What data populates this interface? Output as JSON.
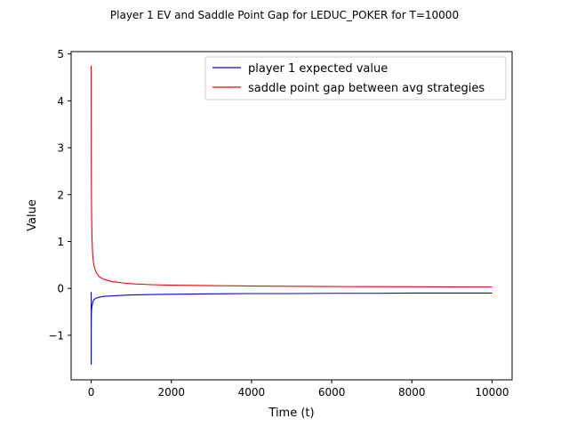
{
  "chart_data": {
    "type": "line",
    "title": "Player 1 EV and Saddle Point Gap for LEDUC_POKER for T=10000",
    "xlabel": "Time (t)",
    "ylabel": "Value",
    "xlim": [
      -500,
      10500
    ],
    "ylim": [
      -1.95,
      5.05
    ],
    "x_ticks": [
      0,
      2000,
      4000,
      6000,
      8000,
      10000
    ],
    "x_tick_labels": [
      "0",
      "2000",
      "4000",
      "6000",
      "8000",
      "10000"
    ],
    "y_ticks": [
      -1,
      0,
      1,
      2,
      3,
      4,
      5
    ],
    "y_tick_labels": [
      "−1",
      "0",
      "1",
      "2",
      "3",
      "4",
      "5"
    ],
    "grid": false,
    "legend_position": "upper-right",
    "series": [
      {
        "name": "player 1 expected value",
        "color": "#0000ff",
        "points": [
          [
            0,
            -0.08
          ],
          [
            1,
            -1.62
          ],
          [
            2,
            -0.8
          ],
          [
            5,
            -0.55
          ],
          [
            10,
            -0.45
          ],
          [
            20,
            -0.38
          ],
          [
            40,
            -0.3
          ],
          [
            60,
            -0.25
          ],
          [
            100,
            -0.22
          ],
          [
            150,
            -0.2
          ],
          [
            200,
            -0.19
          ],
          [
            300,
            -0.17
          ],
          [
            500,
            -0.16
          ],
          [
            750,
            -0.15
          ],
          [
            1000,
            -0.14
          ],
          [
            1500,
            -0.13
          ],
          [
            2000,
            -0.125
          ],
          [
            2500,
            -0.12
          ],
          [
            3000,
            -0.115
          ],
          [
            4000,
            -0.11
          ],
          [
            5000,
            -0.11
          ],
          [
            6000,
            -0.105
          ],
          [
            7000,
            -0.105
          ],
          [
            8000,
            -0.1
          ],
          [
            9000,
            -0.1
          ],
          [
            10000,
            -0.1
          ]
        ]
      },
      {
        "name": "saddle point gap between avg strategies",
        "color": "#ff0000",
        "points": [
          [
            0,
            4.75
          ],
          [
            2,
            3.2
          ],
          [
            5,
            2.2
          ],
          [
            10,
            1.6
          ],
          [
            20,
            1.1
          ],
          [
            30,
            0.85
          ],
          [
            50,
            0.6
          ],
          [
            80,
            0.45
          ],
          [
            120,
            0.35
          ],
          [
            200,
            0.25
          ],
          [
            300,
            0.2
          ],
          [
            500,
            0.15
          ],
          [
            750,
            0.12
          ],
          [
            1000,
            0.1
          ],
          [
            1500,
            0.08
          ],
          [
            2000,
            0.07
          ],
          [
            3000,
            0.06
          ],
          [
            4000,
            0.05
          ],
          [
            5000,
            0.045
          ],
          [
            6000,
            0.04
          ],
          [
            7000,
            0.038
          ],
          [
            8000,
            0.035
          ],
          [
            9000,
            0.032
          ],
          [
            10000,
            0.03
          ]
        ]
      }
    ]
  }
}
